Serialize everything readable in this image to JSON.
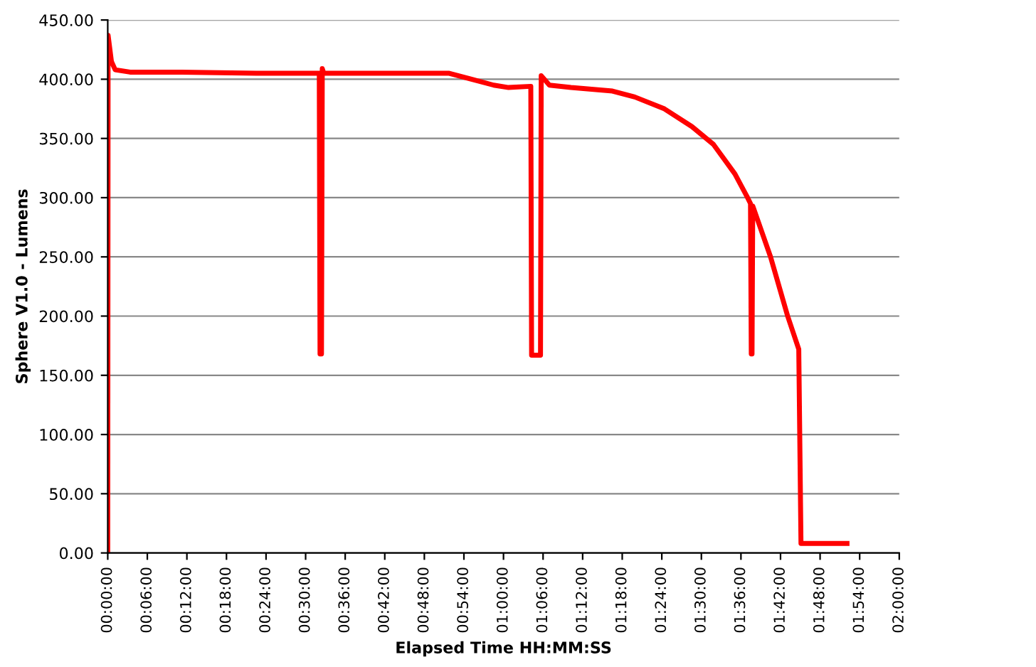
{
  "chart_data": {
    "type": "line",
    "xlabel": "Elapsed Time HH:MM:SS",
    "ylabel": "Sphere V1.0 - Lumens",
    "x": [
      0,
      0.0009,
      0.0093,
      0.0188,
      0.0563,
      0.1876,
      0.3751,
      0.5345,
      0.5364,
      0.5401,
      0.5421,
      0.5458,
      0.7502,
      0.8628,
      0.919,
      0.9753,
      1.0128,
      1.069,
      1.071,
      1.0935,
      1.0953,
      1.116,
      1.1703,
      1.2753,
      1.3316,
      1.4066,
      1.4761,
      1.5304,
      1.5848,
      1.6167,
      1.6241,
      1.6261,
      1.628,
      1.6298,
      1.6748,
      1.718,
      1.7461,
      1.7517,
      1.8005,
      1.868
    ],
    "series": [
      {
        "color": "#ff0000",
        "values": [
          0,
          437,
          415,
          408,
          406,
          406,
          405,
          405,
          168,
          168,
          409,
          405,
          405,
          405,
          400,
          395,
          393,
          394,
          167,
          167,
          403,
          395,
          393,
          390,
          385,
          375,
          360,
          345,
          320,
          300,
          295,
          168,
          168,
          293,
          250,
          200,
          172,
          8,
          8,
          8
        ]
      }
    ],
    "xlim": [
      0,
      2
    ],
    "xticks": [
      {
        "value": 0,
        "label": "00:00:00"
      },
      {
        "value": 0.1,
        "label": "00:06:00"
      },
      {
        "value": 0.2,
        "label": "00:12:00"
      },
      {
        "value": 0.3,
        "label": "00:18:00"
      },
      {
        "value": 0.4,
        "label": "00:24:00"
      },
      {
        "value": 0.5,
        "label": "00:30:00"
      },
      {
        "value": 0.6,
        "label": "00:36:00"
      },
      {
        "value": 0.7,
        "label": "00:42:00"
      },
      {
        "value": 0.8,
        "label": "00:48:00"
      },
      {
        "value": 0.9,
        "label": "00:54:00"
      },
      {
        "value": 1.0,
        "label": "01:00:00"
      },
      {
        "value": 1.1,
        "label": "01:06:00"
      },
      {
        "value": 1.2,
        "label": "01:12:00"
      },
      {
        "value": 1.3,
        "label": "01:18:00"
      },
      {
        "value": 1.4,
        "label": "01:24:00"
      },
      {
        "value": 1.5,
        "label": "01:30:00"
      },
      {
        "value": 1.6,
        "label": "01:36:00"
      },
      {
        "value": 1.7,
        "label": "01:42:00"
      },
      {
        "value": 1.8,
        "label": "01:48:00"
      },
      {
        "value": 1.9,
        "label": "01:54:00"
      },
      {
        "value": 2.0,
        "label": "02:00:00"
      }
    ],
    "ylim": [
      0,
      450
    ],
    "yticks": [
      {
        "value": 0,
        "label": "0.00"
      },
      {
        "value": 50,
        "label": "50.00"
      },
      {
        "value": 100,
        "label": "100.00"
      },
      {
        "value": 150,
        "label": "150.00"
      },
      {
        "value": 200,
        "label": "200.00"
      },
      {
        "value": 250,
        "label": "250.00"
      },
      {
        "value": 300,
        "label": "300.00"
      },
      {
        "value": 350,
        "label": "350.00"
      },
      {
        "value": 400,
        "label": "400.00"
      },
      {
        "value": 450,
        "label": "450.00"
      }
    ],
    "grid": "y",
    "marker": "none",
    "line_style": "solid"
  }
}
